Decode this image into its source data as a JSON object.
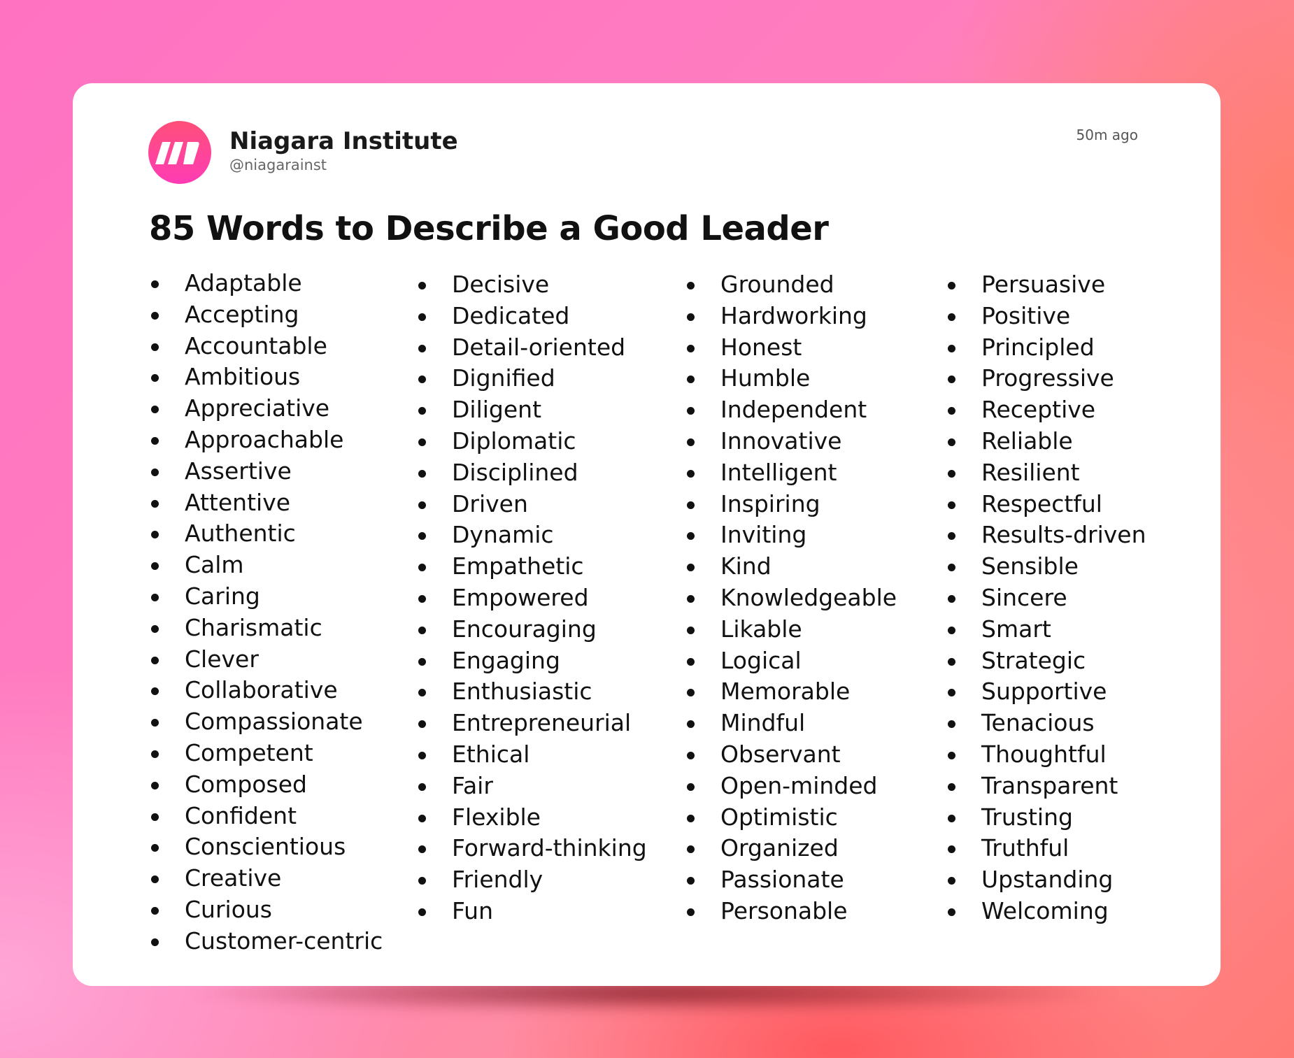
{
  "post": {
    "author_name": "Niagara Institute",
    "author_handle": "@niagarainst",
    "timestamp": "50m ago",
    "brand_color": "#ff3fa4",
    "title": "85 Words to Describe a Good Leader",
    "columns": [
      [
        "Adaptable",
        "Accepting",
        "Accountable",
        "Ambitious",
        "Appreciative",
        "Approachable",
        "Assertive",
        "Attentive",
        "Authentic",
        "Calm",
        "Caring",
        "Charismatic",
        "Clever",
        "Collaborative",
        "Compassionate",
        "Competent",
        "Composed",
        "Confident",
        "Conscientious",
        "Creative",
        "Curious",
        "Customer-centric"
      ],
      [
        "Decisive",
        "Dedicated",
        "Detail-oriented",
        "Dignified",
        "Diligent",
        "Diplomatic",
        "Disciplined",
        "Driven",
        "Dynamic",
        "Empathetic",
        "Empowered",
        "Encouraging",
        "Engaging",
        "Enthusiastic",
        "Entrepreneurial",
        "Ethical",
        "Fair",
        "Flexible",
        "Forward-thinking",
        "Friendly",
        "Fun"
      ],
      [
        "Grounded",
        "Hardworking",
        "Honest",
        "Humble",
        "Independent",
        "Innovative",
        "Intelligent",
        "Inspiring",
        "Inviting",
        "Kind",
        "Knowledgeable",
        "Likable",
        "Logical",
        "Memorable",
        "Mindful",
        "Observant",
        "Open-minded",
        "Optimistic",
        "Organized",
        "Passionate",
        "Personable"
      ],
      [
        "Persuasive",
        "Positive",
        "Principled",
        "Progressive",
        "Receptive",
        "Reliable",
        "Resilient",
        "Respectful",
        "Results-driven",
        "Sensible",
        "Sincere",
        "Smart",
        "Strategic",
        "Supportive",
        "Tenacious",
        "Thoughtful",
        "Transparent",
        "Trusting",
        "Truthful",
        "Upstanding",
        "Welcoming"
      ]
    ]
  }
}
